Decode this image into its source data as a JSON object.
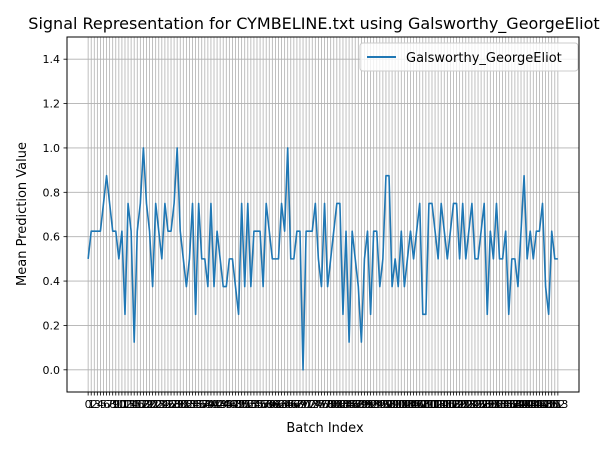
{
  "chart_data": {
    "type": "line",
    "title": "Signal Representation for CYMBELINE.txt using Galsworthy_GeorgeEliot",
    "xlabel": "Batch Index",
    "ylabel": "Mean Prediction Value",
    "ylim": [
      -0.1,
      1.5
    ],
    "yticks": [
      0.0,
      0.2,
      0.4,
      0.6,
      0.8,
      1.0,
      1.2,
      1.4
    ],
    "grid": true,
    "legend_position": "top-right",
    "series": [
      {
        "name": "Galsworthy_GeorgeEliot",
        "color": "#1f77b4",
        "values": [
          0.5,
          0.625,
          0.625,
          0.625,
          0.625,
          0.75,
          0.875,
          0.75,
          0.625,
          0.625,
          0.5,
          0.625,
          0.25,
          0.75,
          0.625,
          0.125,
          0.625,
          0.75,
          1.0,
          0.75,
          0.625,
          0.375,
          0.75,
          0.625,
          0.5,
          0.75,
          0.625,
          0.625,
          0.75,
          1.0,
          0.625,
          0.5,
          0.375,
          0.5,
          0.75,
          0.25,
          0.75,
          0.5,
          0.5,
          0.375,
          0.75,
          0.375,
          0.625,
          0.5,
          0.375,
          0.375,
          0.5,
          0.5,
          0.375,
          0.25,
          0.75,
          0.375,
          0.75,
          0.375,
          0.625,
          0.625,
          0.625,
          0.375,
          0.75,
          0.625,
          0.5,
          0.5,
          0.5,
          0.75,
          0.625,
          1.0,
          0.5,
          0.5,
          0.625,
          0.625,
          0.0,
          0.625,
          0.625,
          0.625,
          0.75,
          0.5,
          0.375,
          0.75,
          0.375,
          0.5,
          0.625,
          0.75,
          0.75,
          0.25,
          0.625,
          0.125,
          0.625,
          0.5,
          0.375,
          0.125,
          0.5,
          0.625,
          0.25,
          0.625,
          0.625,
          0.375,
          0.5,
          0.875,
          0.875,
          0.375,
          0.5,
          0.375,
          0.625,
          0.375,
          0.5,
          0.625,
          0.5,
          0.625,
          0.75,
          0.25,
          0.25,
          0.75,
          0.75,
          0.625,
          0.5,
          0.75,
          0.625,
          0.5,
          0.625,
          0.75,
          0.75,
          0.5,
          0.75,
          0.5,
          0.625,
          0.75,
          0.5,
          0.5,
          0.625,
          0.75,
          0.25,
          0.625,
          0.5,
          0.75,
          0.5,
          0.5,
          0.625,
          0.25,
          0.5,
          0.5,
          0.375,
          0.625,
          0.875,
          0.5,
          0.625,
          0.5,
          0.625,
          0.625,
          0.75,
          0.375,
          0.25,
          0.625,
          0.5,
          0.5
        ]
      }
    ],
    "xticks": [
      "0",
      "1",
      "2",
      "3",
      "4",
      "5",
      "6",
      "7",
      "8",
      "9",
      "10",
      "11",
      "12",
      "13",
      "14",
      "15",
      "16",
      "17",
      "18",
      "19",
      "20",
      "21",
      "22",
      "23",
      "24",
      "25",
      "26",
      "27",
      "28",
      "29",
      "30",
      "31",
      "32",
      "33",
      "34",
      "35",
      "36",
      "37",
      "38",
      "39",
      "40",
      "41",
      "42",
      "43",
      "44",
      "45",
      "46",
      "47",
      "48",
      "49",
      "50",
      "51",
      "52",
      "53",
      "54",
      "55",
      "56",
      "57",
      "58",
      "59",
      "60",
      "61",
      "62",
      "63",
      "64",
      "65",
      "66",
      "67",
      "68",
      "69",
      "70",
      "71",
      "72",
      "73",
      "74",
      "75",
      "76",
      "77",
      "78",
      "79",
      "80",
      "81",
      "82",
      "83",
      "84",
      "85",
      "86",
      "87",
      "88",
      "89",
      "90",
      "91",
      "92",
      "93",
      "94",
      "95",
      "96",
      "97",
      "98",
      "99",
      "100",
      "101",
      "102",
      "103",
      "104",
      "105",
      "106",
      "107",
      "108",
      "109",
      "110",
      "111",
      "112",
      "113",
      "114",
      "115",
      "116",
      "117",
      "118",
      "119",
      "120",
      "121",
      "122",
      "123",
      "124",
      "125",
      "126",
      "127",
      "128",
      "129",
      "130",
      "131",
      "132",
      "133",
      "134",
      "135",
      "136",
      "137",
      "138",
      "139",
      "140",
      "141",
      "142",
      "143",
      "144",
      "145",
      "146",
      "147",
      "148",
      "149",
      "150",
      "151",
      "152",
      "153"
    ]
  }
}
